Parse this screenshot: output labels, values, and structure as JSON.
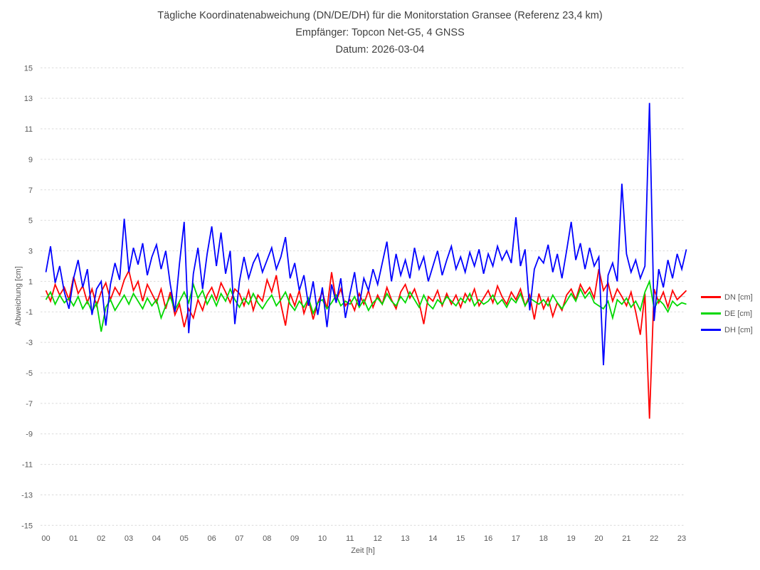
{
  "title": {
    "line1": "Tägliche Koordinatenabweichung (DN/DE/DH) für die Monitorstation Gransee (Referenz 23,4 km)",
    "line2": "Empfänger: Topcon Net-G5, 4 GNSS",
    "line3": "Datum: 2026-03-04"
  },
  "colors": {
    "grid": "#d9d9d9",
    "zero_line": "#c6c6c6",
    "tick_text": "#595959",
    "title_text": "#404040"
  },
  "chart_data": {
    "type": "line",
    "title": "Tägliche Koordinatenabweichung (DN/DE/DH) für die Monitorstation Gransee (Referenz 23,4 km) — Empfänger: Topcon Net-G5, 4 GNSS — Datum: 2026-03-04",
    "xlabel": "Zeit [h]",
    "ylabel": "Abweichung [cm]",
    "xlim": [
      0,
      23.2
    ],
    "ylim": [
      -15,
      15
    ],
    "grid": "dashed horizontal at every ytick, solid zero line",
    "legend_position": "right",
    "xticks": [
      "00",
      "01",
      "02",
      "03",
      "04",
      "05",
      "06",
      "07",
      "08",
      "09",
      "10",
      "11",
      "12",
      "13",
      "14",
      "15",
      "16",
      "17",
      "18",
      "19",
      "20",
      "21",
      "22",
      "23"
    ],
    "yticks": [
      15,
      13,
      11,
      9,
      7,
      5,
      3,
      1,
      -1,
      -3,
      -5,
      -7,
      -9,
      -11,
      -13,
      -15
    ],
    "x_start_hours": 0,
    "x_step_hours": 0.16667,
    "series": [
      {
        "name": "DN [cm]",
        "color": "#ff0000",
        "values": [
          0.4,
          -0.3,
          0.8,
          0.1,
          0.6,
          -0.2,
          1.3,
          0.2,
          0.7,
          -0.4,
          0.5,
          -0.6,
          0.3,
          0.9,
          -0.2,
          0.6,
          0.1,
          1.1,
          1.7,
          0.4,
          1.0,
          -0.3,
          0.8,
          0.2,
          -0.4,
          0.5,
          -0.8,
          0.3,
          -1.2,
          -0.5,
          -2.0,
          -0.8,
          -1.4,
          -0.2,
          -0.9,
          0.1,
          0.6,
          -0.2,
          0.9,
          0.3,
          -0.4,
          0.5,
          0.2,
          -0.6,
          0.4,
          -0.9,
          0.1,
          -0.3,
          1.1,
          0.3,
          1.4,
          -0.5,
          -1.9,
          0.2,
          -0.6,
          0.4,
          -1.1,
          -0.2,
          -1.5,
          -0.4,
          0.3,
          -0.8,
          1.6,
          -0.3,
          0.5,
          -0.6,
          -0.2,
          -0.9,
          0.2,
          -0.5,
          0.4,
          -0.7,
          0.1,
          -0.5,
          0.6,
          -0.2,
          -0.8,
          0.3,
          0.8,
          -0.1,
          0.5,
          -0.4,
          -1.8,
          0.0,
          -0.3,
          0.4,
          -0.6,
          0.2,
          -0.5,
          0.1,
          -0.7,
          0.2,
          -0.3,
          0.5,
          -0.6,
          -0.1,
          0.4,
          -0.4,
          0.7,
          0.0,
          -0.5,
          0.3,
          -0.2,
          0.5,
          -0.6,
          0.1,
          -1.5,
          0.2,
          -0.8,
          -0.1,
          -1.3,
          -0.4,
          -0.9,
          0.1,
          0.5,
          -0.2,
          0.8,
          0.2,
          0.6,
          -0.1,
          1.8,
          0.4,
          0.9,
          -0.3,
          0.5,
          0.0,
          -0.6,
          0.3,
          -1.0,
          -2.5,
          0.2,
          -8.0,
          0.5,
          -0.4,
          0.3,
          -0.7,
          0.4,
          -0.2,
          0.1,
          0.4
        ]
      },
      {
        "name": "DE [cm]",
        "color": "#00d800",
        "values": [
          -0.2,
          0.3,
          -0.5,
          0.1,
          -0.4,
          -0.1,
          -0.6,
          0.0,
          -0.8,
          -0.3,
          -1.0,
          -0.4,
          -2.3,
          -0.7,
          -0.2,
          -0.9,
          -0.4,
          0.1,
          -0.5,
          0.2,
          -0.3,
          -0.8,
          -0.1,
          -0.6,
          -0.2,
          -1.4,
          -0.6,
          0.0,
          -0.9,
          -0.3,
          0.3,
          -0.4,
          0.8,
          -0.1,
          0.4,
          -0.5,
          0.1,
          -0.6,
          0.2,
          -0.3,
          0.5,
          -0.2,
          -0.7,
          -0.1,
          -0.5,
          0.2,
          -0.4,
          -0.8,
          -0.3,
          0.1,
          -0.6,
          -0.2,
          0.3,
          -0.5,
          -0.9,
          -0.3,
          -0.7,
          -0.1,
          -1.1,
          -0.4,
          -0.2,
          -0.8,
          -0.4,
          0.1,
          -0.6,
          -0.3,
          -0.5,
          0.0,
          -0.7,
          -0.2,
          -0.9,
          -0.4,
          -0.1,
          -0.5,
          0.2,
          -0.3,
          -0.6,
          0.0,
          -0.4,
          0.3,
          -0.2,
          -0.7,
          0.1,
          -0.5,
          -0.8,
          -0.2,
          -0.5,
          0.0,
          -0.3,
          -0.6,
          -0.1,
          -0.4,
          0.2,
          -0.6,
          -0.2,
          -0.5,
          -0.3,
          0.1,
          -0.5,
          -0.2,
          -0.7,
          -0.1,
          -0.4,
          0.2,
          -0.6,
          -0.1,
          -0.3,
          -0.5,
          -0.2,
          -0.6,
          0.1,
          -0.4,
          -0.8,
          -0.3,
          0.2,
          -0.3,
          0.5,
          -0.1,
          0.3,
          -0.4,
          -0.6,
          -0.8,
          -0.3,
          -1.4,
          -0.2,
          -0.5,
          -0.1,
          -0.7,
          -0.3,
          -0.9,
          0.3,
          1.0,
          -0.8,
          -0.2,
          -0.5,
          -1.0,
          -0.3,
          -0.6,
          -0.4,
          -0.5
        ]
      },
      {
        "name": "DH [cm]",
        "color": "#0000ff",
        "values": [
          1.6,
          3.3,
          0.9,
          2.0,
          0.3,
          -0.8,
          1.2,
          2.4,
          0.6,
          1.8,
          -1.2,
          0.5,
          1.0,
          -1.9,
          0.8,
          2.2,
          1.1,
          5.1,
          1.6,
          3.2,
          2.1,
          3.5,
          1.4,
          2.6,
          3.4,
          1.8,
          3.0,
          0.8,
          -1.0,
          2.2,
          4.9,
          -2.4,
          1.5,
          3.2,
          0.5,
          2.8,
          4.6,
          2.0,
          4.2,
          1.5,
          3.0,
          -1.8,
          1.0,
          2.6,
          1.2,
          2.2,
          2.8,
          1.6,
          2.4,
          3.2,
          1.8,
          2.6,
          3.9,
          1.2,
          2.2,
          0.4,
          1.4,
          -0.6,
          1.0,
          -1.2,
          0.6,
          -2.0,
          0.8,
          -0.4,
          1.2,
          -1.4,
          0.2,
          1.6,
          -0.6,
          1.2,
          0.4,
          1.8,
          0.8,
          2.2,
          3.6,
          1.0,
          2.8,
          1.4,
          2.4,
          1.2,
          3.2,
          1.8,
          2.6,
          1.0,
          2.0,
          3.0,
          1.4,
          2.4,
          3.3,
          1.8,
          2.6,
          1.6,
          2.9,
          2.0,
          3.1,
          1.5,
          2.8,
          2.0,
          3.3,
          2.4,
          3.0,
          2.2,
          5.2,
          2.0,
          3.1,
          -0.9,
          1.8,
          2.6,
          2.2,
          3.4,
          1.6,
          2.8,
          1.2,
          3.0,
          4.9,
          2.4,
          3.5,
          1.8,
          3.2,
          2.0,
          2.6,
          -4.5,
          1.4,
          2.2,
          1.0,
          7.4,
          2.8,
          1.6,
          2.4,
          1.2,
          2.0,
          12.7,
          -1.6,
          1.8,
          0.6,
          2.4,
          1.2,
          2.8,
          1.8,
          3.1
        ]
      }
    ]
  }
}
